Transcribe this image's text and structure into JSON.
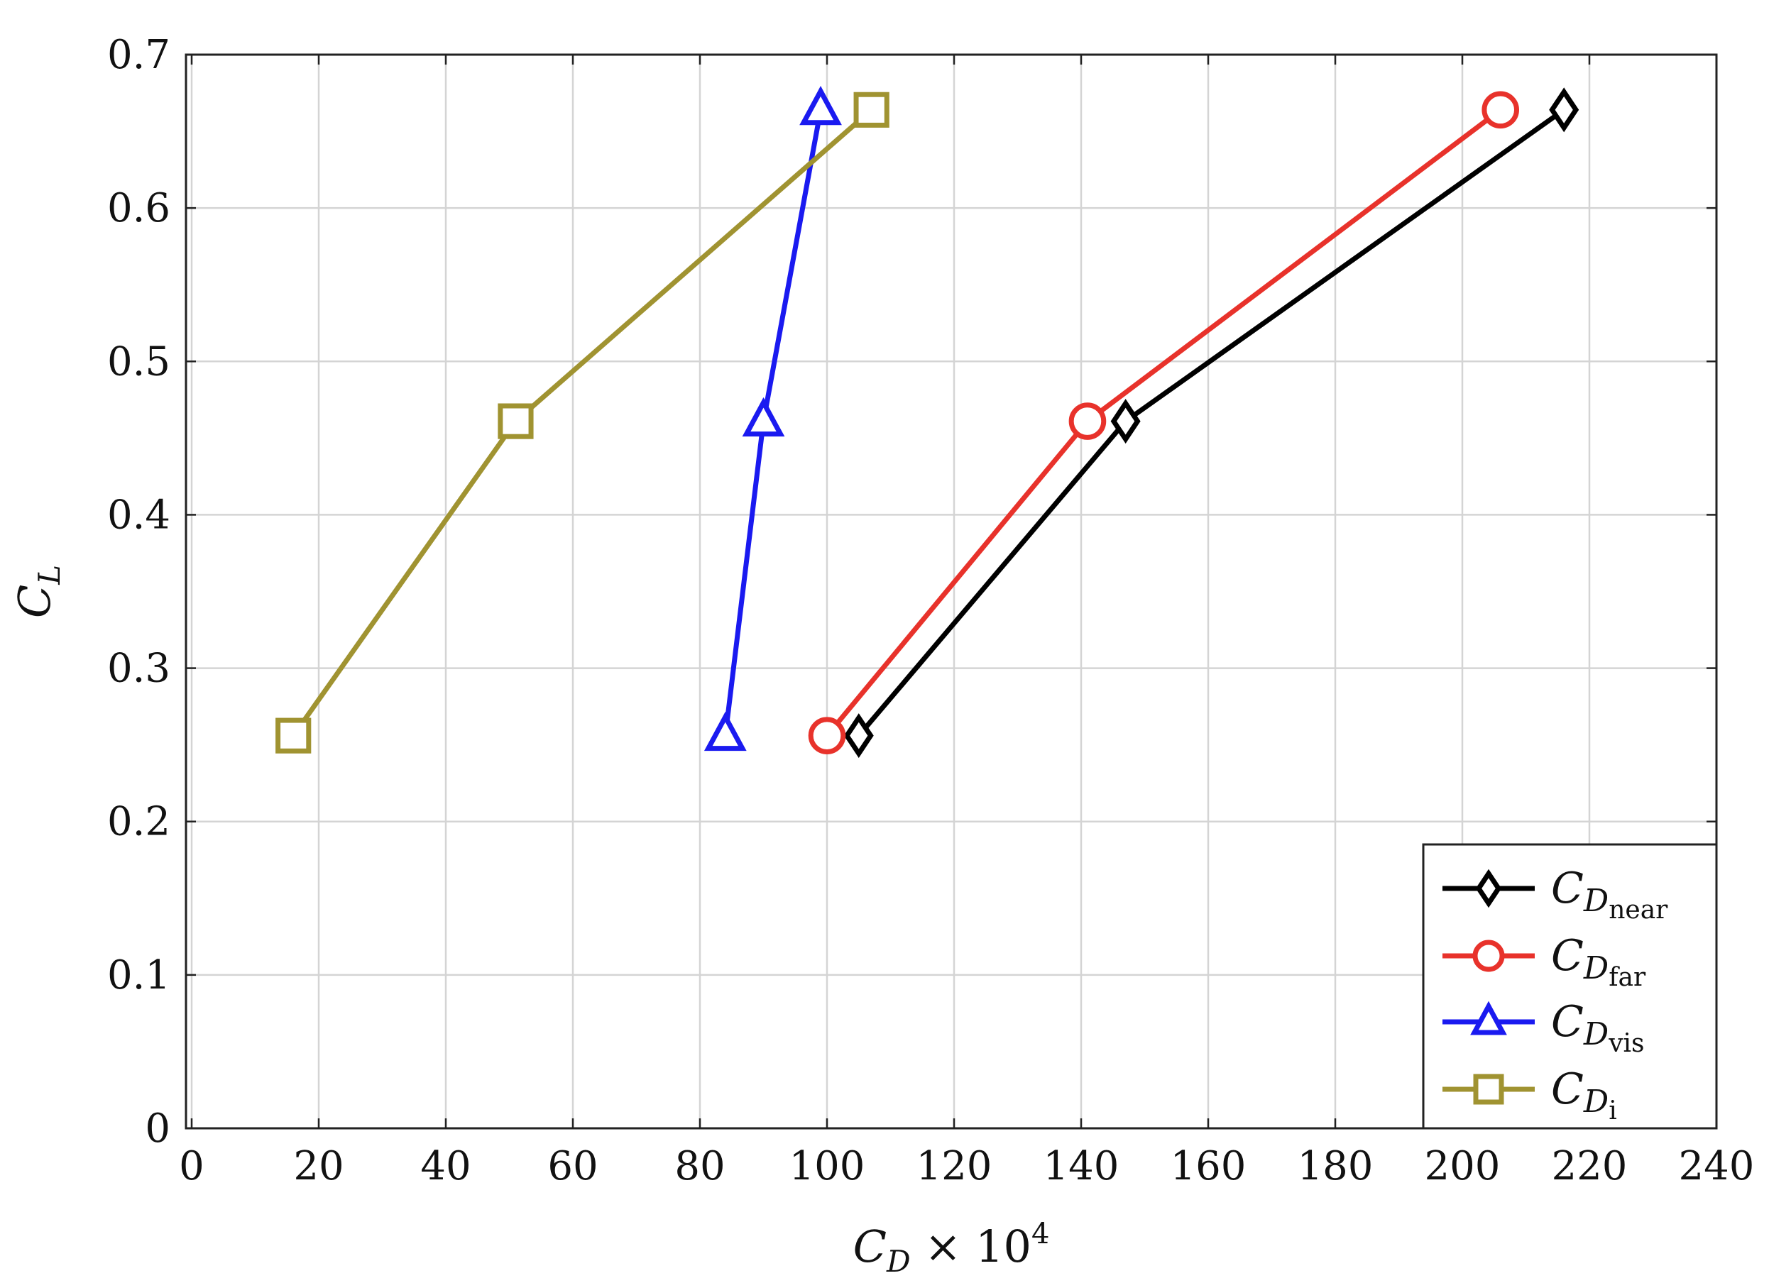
{
  "chart_data": {
    "type": "line",
    "title": "",
    "xlabel": {
      "main": "C",
      "sub": "D",
      "suffix": " × 10",
      "sup": "4"
    },
    "ylabel": {
      "main": "C",
      "sub": "L"
    },
    "xlim": [
      0,
      240
    ],
    "ylim": [
      0,
      0.7
    ],
    "xticks": [
      0,
      20,
      40,
      60,
      80,
      100,
      120,
      140,
      160,
      180,
      200,
      220,
      240
    ],
    "yticks": [
      0,
      0.1,
      0.2,
      0.3,
      0.4,
      0.5,
      0.6,
      0.7
    ],
    "xtick_labels": [
      "0",
      "20",
      "40",
      "60",
      "80",
      "100",
      "120",
      "140",
      "160",
      "180",
      "200",
      "220",
      "240"
    ],
    "ytick_labels": [
      "0",
      "0.1",
      "0.2",
      "0.3",
      "0.4",
      "0.5",
      "0.6",
      "0.7"
    ],
    "grid": true,
    "legend_position": "bottom-right",
    "series": [
      {
        "name": "C_D_near",
        "label_main": "C",
        "label_sub1": "D",
        "label_sub2": "near",
        "color": "#000000",
        "marker": "diamond",
        "x": [
          105,
          147,
          216
        ],
        "y": [
          0.256,
          0.461,
          0.664
        ]
      },
      {
        "name": "C_D_far",
        "label_main": "C",
        "label_sub1": "D",
        "label_sub2": "far",
        "color": "#e8322b",
        "marker": "circle",
        "x": [
          100,
          141,
          206
        ],
        "y": [
          0.256,
          0.461,
          0.664
        ]
      },
      {
        "name": "C_D_vis",
        "label_main": "C",
        "label_sub1": "D",
        "label_sub2": "vis",
        "color": "#1a1af0",
        "marker": "triangle",
        "x": [
          84,
          90,
          99
        ],
        "y": [
          0.256,
          0.461,
          0.664
        ]
      },
      {
        "name": "C_D_i",
        "label_main": "C",
        "label_sub1": "D",
        "label_sub2": "i",
        "color": "#a09331",
        "marker": "square",
        "x": [
          16,
          51,
          107
        ],
        "y": [
          0.256,
          0.461,
          0.664
        ]
      }
    ]
  }
}
